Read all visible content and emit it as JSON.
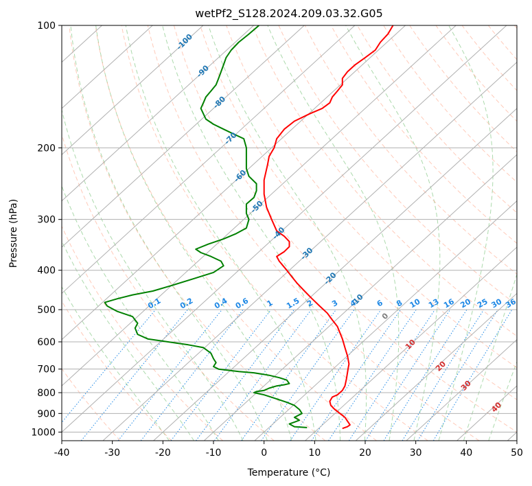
{
  "chart_data": {
    "type": "line",
    "title": "wetPf2_S128.2024.209.03.32.G05",
    "xlabel": "Temperature (°C)",
    "ylabel": "Pressure (hPa)",
    "xlim": [
      -40,
      50
    ],
    "ylim": [
      1050,
      100
    ],
    "y_scale": "log",
    "grid": true,
    "x_ticks": [
      -40,
      -30,
      -20,
      -10,
      0,
      10,
      20,
      30,
      40,
      50
    ],
    "y_ticks": [
      100,
      200,
      300,
      400,
      500,
      600,
      700,
      800,
      900,
      1000
    ],
    "isotherm_labels": [
      -100,
      -90,
      -80,
      -70,
      -60,
      -50,
      -40,
      -30,
      -20,
      -10
    ],
    "mixing_ratio_labels": [
      "0.1",
      "0.2",
      "0.4",
      "0.6",
      "1",
      "1.5",
      "2",
      "3",
      "4",
      "6",
      "8",
      "10",
      "13",
      "16",
      "20",
      "25",
      "30",
      "36"
    ],
    "mixing_ratio_values": [
      0.1,
      0.2,
      0.4,
      0.6,
      1,
      1.5,
      2,
      3,
      4,
      6,
      8,
      10,
      13,
      16,
      20,
      25,
      30,
      36
    ],
    "adiabat_labels": [
      0,
      10,
      20,
      30,
      40
    ],
    "colors": {
      "temperature": "#ff0000",
      "dewpoint": "#008000",
      "grid": "#b0b0b0",
      "isotherm_label": "#1f77b4",
      "mixing_ratio": "#1e88e5",
      "dry_adiabat": "#ff9e80",
      "moist_adiabat": "#2ca02c",
      "adiabat_label": "#d32f2f"
    },
    "series": [
      {
        "key": "temperature",
        "points": [
          [
            15.5,
            980
          ],
          [
            16.5,
            970
          ],
          [
            17.0,
            960
          ],
          [
            16.5,
            940
          ],
          [
            16.0,
            920
          ],
          [
            15.0,
            900
          ],
          [
            14.0,
            880
          ],
          [
            13.2,
            860
          ],
          [
            13.0,
            840
          ],
          [
            13.5,
            820
          ],
          [
            14.5,
            810
          ],
          [
            15.5,
            790
          ],
          [
            16.0,
            770
          ],
          [
            16.3,
            740
          ],
          [
            16.6,
            700
          ],
          [
            16.8,
            680
          ],
          [
            16.5,
            650
          ],
          [
            16.0,
            620
          ],
          [
            15.5,
            590
          ],
          [
            15.0,
            570
          ],
          [
            14.5,
            550
          ],
          [
            13.5,
            530
          ],
          [
            12.5,
            510
          ],
          [
            11.0,
            490
          ],
          [
            9.5,
            470
          ],
          [
            8.0,
            450
          ],
          [
            6.5,
            430
          ],
          [
            5.5,
            415
          ],
          [
            4.5,
            400
          ],
          [
            3.0,
            380
          ],
          [
            2.5,
            370
          ],
          [
            4.0,
            360
          ],
          [
            5.0,
            350
          ],
          [
            5.0,
            340
          ],
          [
            4.0,
            330
          ],
          [
            2.5,
            320
          ],
          [
            1.5,
            300
          ],
          [
            0.5,
            280
          ],
          [
            0.0,
            260
          ],
          [
            0.0,
            240
          ],
          [
            0.7,
            220
          ],
          [
            1.0,
            210
          ],
          [
            2.0,
            200
          ],
          [
            2.5,
            190
          ],
          [
            4.0,
            180
          ],
          [
            6.0,
            172
          ],
          [
            9.0,
            165
          ],
          [
            11.5,
            160
          ],
          [
            13.0,
            155
          ],
          [
            13.5,
            150
          ],
          [
            14.5,
            145
          ],
          [
            15.5,
            140
          ],
          [
            15.5,
            135
          ],
          [
            16.5,
            130
          ],
          [
            18.0,
            125
          ],
          [
            20.0,
            120
          ],
          [
            22.0,
            115
          ],
          [
            23.0,
            110
          ],
          [
            24.5,
            105
          ],
          [
            25.5,
            100
          ]
        ]
      },
      {
        "key": "dewpoint",
        "points": [
          [
            8.5,
            975
          ],
          [
            6.0,
            970
          ],
          [
            5.0,
            955
          ],
          [
            6.0,
            945
          ],
          [
            7.0,
            935
          ],
          [
            6.0,
            920
          ],
          [
            7.5,
            900
          ],
          [
            7.0,
            880
          ],
          [
            6.0,
            860
          ],
          [
            4.5,
            845
          ],
          [
            2.0,
            825
          ],
          [
            0.0,
            810
          ],
          [
            -2.0,
            800
          ],
          [
            -1.5,
            795
          ],
          [
            0.0,
            790
          ],
          [
            1.0,
            780
          ],
          [
            2.5,
            770
          ],
          [
            4.0,
            765
          ],
          [
            5.0,
            760
          ],
          [
            4.5,
            745
          ],
          [
            3.0,
            735
          ],
          [
            1.0,
            725
          ],
          [
            -2.0,
            715
          ],
          [
            -5.0,
            710
          ],
          [
            -9.0,
            700
          ],
          [
            -10.0,
            690
          ],
          [
            -9.5,
            675
          ],
          [
            -10.0,
            660
          ],
          [
            -10.5,
            640
          ],
          [
            -12.0,
            620
          ],
          [
            -15.0,
            610
          ],
          [
            -19.0,
            600
          ],
          [
            -23.0,
            590
          ],
          [
            -25.0,
            575
          ],
          [
            -25.5,
            555
          ],
          [
            -25.0,
            540
          ],
          [
            -26.0,
            520
          ],
          [
            -29.0,
            505
          ],
          [
            -31.0,
            490
          ],
          [
            -31.5,
            480
          ],
          [
            -29.0,
            470
          ],
          [
            -26.0,
            460
          ],
          [
            -22.0,
            450
          ],
          [
            -18.0,
            435
          ],
          [
            -14.0,
            420
          ],
          [
            -10.0,
            405
          ],
          [
            -8.0,
            390
          ],
          [
            -8.5,
            380
          ],
          [
            -10.5,
            370
          ],
          [
            -12.5,
            362
          ],
          [
            -13.5,
            355
          ],
          [
            -11.0,
            345
          ],
          [
            -8.0,
            335
          ],
          [
            -5.5,
            325
          ],
          [
            -3.5,
            315
          ],
          [
            -3.0,
            300
          ],
          [
            -3.5,
            290
          ],
          [
            -3.5,
            275
          ],
          [
            -2.0,
            265
          ],
          [
            -1.5,
            255
          ],
          [
            -1.5,
            245
          ],
          [
            -3.0,
            235
          ],
          [
            -3.5,
            225
          ],
          [
            -3.5,
            210
          ],
          [
            -3.5,
            200
          ],
          [
            -4.0,
            190
          ],
          [
            -6.0,
            185
          ],
          [
            -8.0,
            180
          ],
          [
            -10.0,
            175
          ],
          [
            -11.5,
            170
          ],
          [
            -12.0,
            165
          ],
          [
            -12.5,
            160
          ],
          [
            -12.0,
            155
          ],
          [
            -11.5,
            150
          ],
          [
            -10.5,
            145
          ],
          [
            -9.5,
            140
          ],
          [
            -9.0,
            135
          ],
          [
            -8.5,
            130
          ],
          [
            -8.0,
            125
          ],
          [
            -7.5,
            120
          ],
          [
            -6.5,
            115
          ],
          [
            -5.0,
            110
          ],
          [
            -3.0,
            105
          ],
          [
            -1.0,
            100
          ]
        ]
      }
    ]
  }
}
